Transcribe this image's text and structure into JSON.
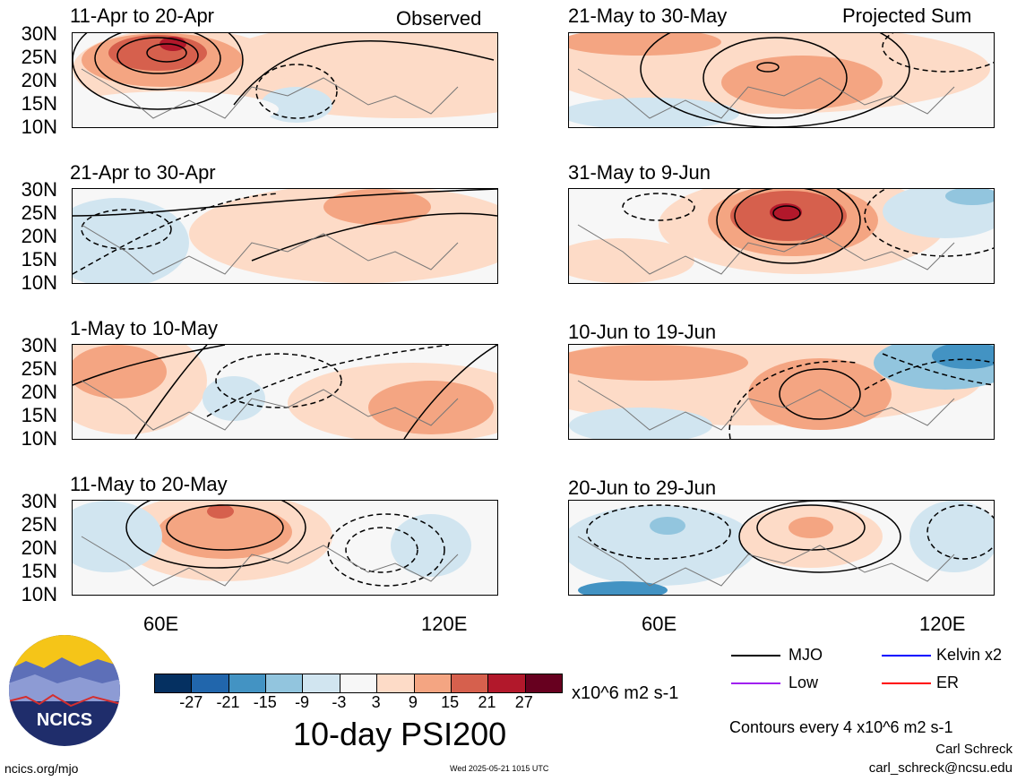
{
  "header": {
    "observed_label": "Observed",
    "projected_label": "Projected Sum"
  },
  "y_ticks": [
    "30N",
    "25N",
    "20N",
    "15N",
    "10N"
  ],
  "x_ticks": [
    "60E",
    "120E"
  ],
  "panels": [
    {
      "title": "11-Apr to 20-Apr",
      "group": "observed"
    },
    {
      "title": "21-Apr to 30-Apr",
      "group": "observed"
    },
    {
      "title": "1-May to 10-May",
      "group": "observed"
    },
    {
      "title": "11-May to 20-May",
      "group": "observed"
    },
    {
      "title": "21-May to 30-May",
      "group": "projected"
    },
    {
      "title": "31-May to 9-Jun",
      "group": "projected"
    },
    {
      "title": "10-Jun to 19-Jun",
      "group": "projected"
    },
    {
      "title": "20-Jun to 29-Jun",
      "group": "projected"
    }
  ],
  "colorbar": {
    "labels": [
      "-27",
      "-21",
      "-15",
      "-9",
      "-3",
      "3",
      "9",
      "15",
      "21",
      "27"
    ],
    "units": "x10^6 m2 s-1",
    "colors": [
      "#053061",
      "#2166ac",
      "#4393c3",
      "#92c5de",
      "#d1e5f0",
      "#f7f7f7",
      "#fddbc7",
      "#f4a582",
      "#d6604d",
      "#b2182b",
      "#67001f"
    ]
  },
  "plot_title": "10-day PSI200",
  "legend": [
    {
      "label": "MJO",
      "color": "#000000"
    },
    {
      "label": "Kelvin x2",
      "color": "#0000ff"
    },
    {
      "label": "Low",
      "color": "#a020f0"
    },
    {
      "label": "ER",
      "color": "#ff0000"
    }
  ],
  "contour_note": "Contours every 4 x10^6 m2 s-1",
  "author": "Carl Schreck",
  "email": "carl_schreck@ncsu.edu",
  "site": "ncics.org/mjo",
  "timestamp": "Wed 2025-05-21 1015 UTC",
  "logo_text": "NCICS"
}
